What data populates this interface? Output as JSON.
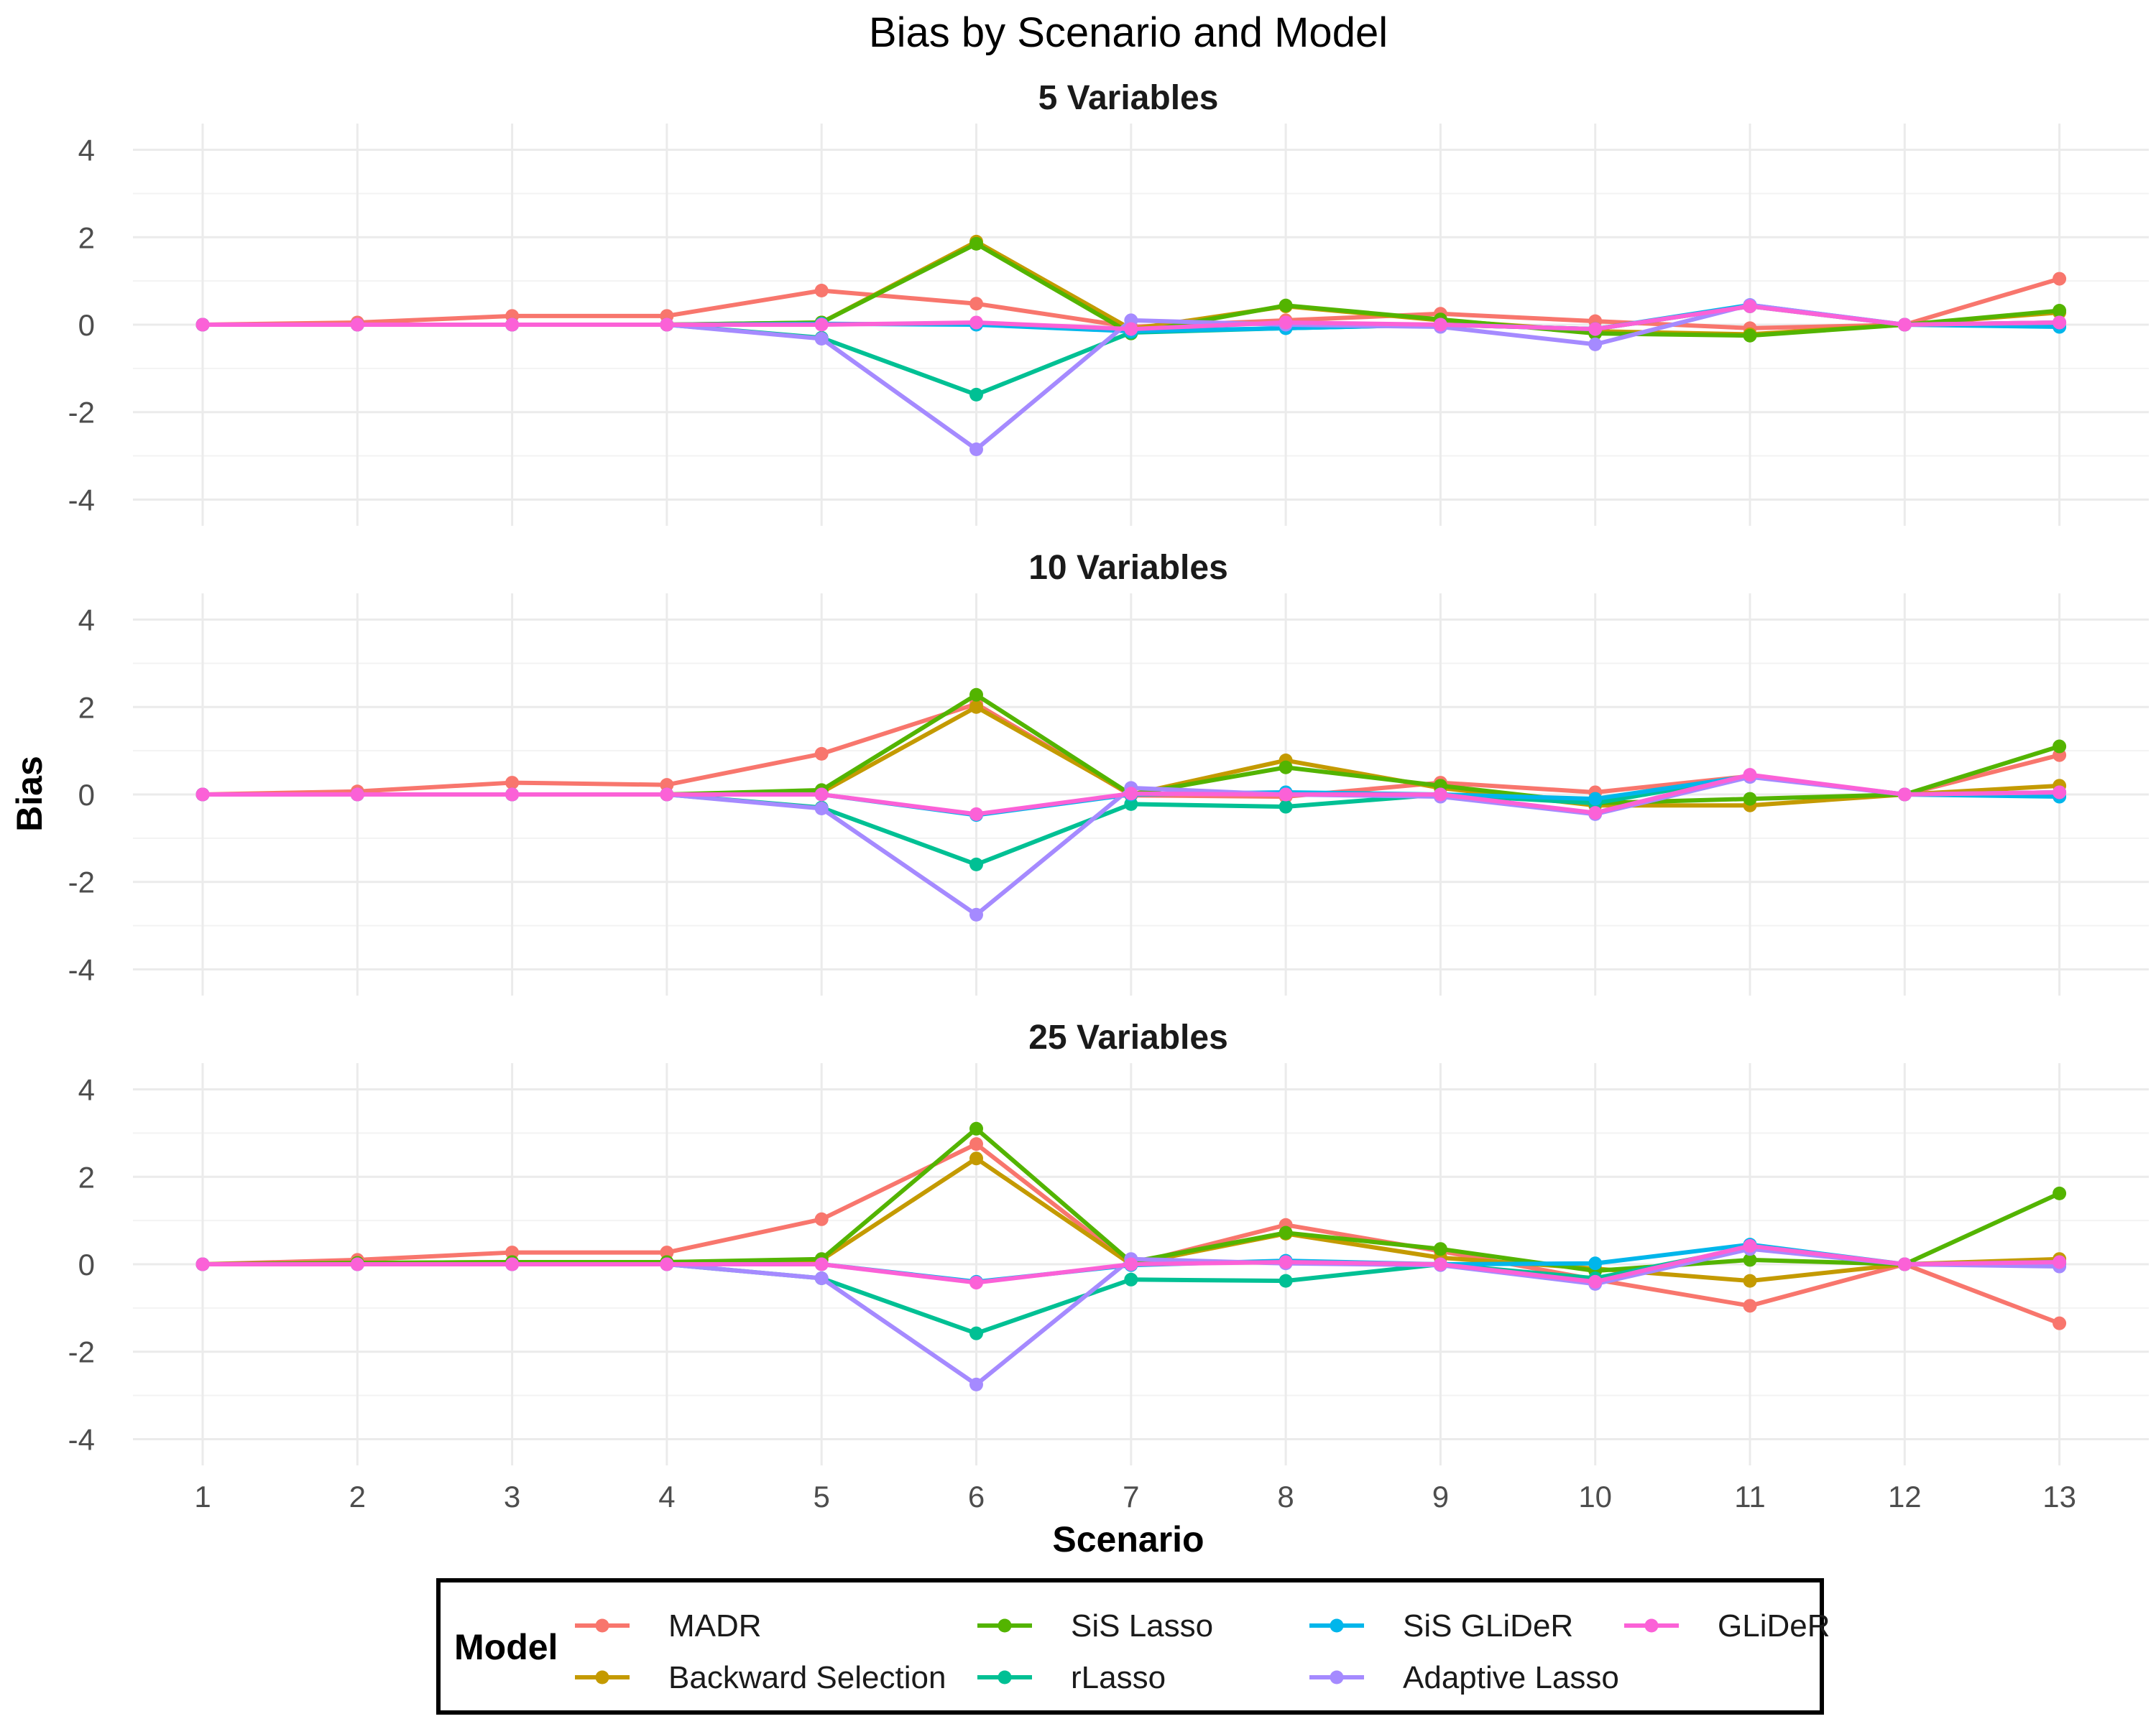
{
  "chart_data": {
    "type": "line",
    "title": "Bias by Scenario and Model",
    "xlabel": "Scenario",
    "ylabel": "Bias",
    "ylim": [
      -4.6,
      4.6
    ],
    "yticks": [
      -4,
      -2,
      0,
      2,
      4
    ],
    "x": [
      1,
      2,
      3,
      4,
      5,
      6,
      7,
      8,
      9,
      10,
      11,
      12,
      13
    ],
    "legend": {
      "title": "Model",
      "position": "bottom"
    },
    "colors": {
      "MADR": "#F8766D",
      "Backward Selection": "#C49A00",
      "SiS Lasso": "#53B400",
      "rLasso": "#00C094",
      "SiS GLiDeR": "#00B6EB",
      "Adaptive Lasso": "#A58AFF",
      "GLiDeR": "#FB61D7"
    },
    "panels": [
      {
        "title": "5 Variables",
        "series": [
          {
            "name": "MADR",
            "values": [
              0,
              0.05,
              0.2,
              0.2,
              0.78,
              0.48,
              -0.05,
              0.1,
              0.25,
              0.08,
              -0.08,
              0,
              1.05
            ]
          },
          {
            "name": "Backward Selection",
            "values": [
              0,
              0,
              0,
              0,
              0.05,
              1.9,
              -0.1,
              0.42,
              0.1,
              -0.15,
              -0.22,
              0,
              0.28
            ]
          },
          {
            "name": "SiS Lasso",
            "values": [
              0,
              0,
              0,
              0,
              0.05,
              1.85,
              -0.2,
              0.44,
              0.12,
              -0.2,
              -0.25,
              0,
              0.32
            ]
          },
          {
            "name": "rLasso",
            "values": [
              0,
              0,
              0,
              0,
              -0.3,
              -1.6,
              -0.18,
              -0.08,
              0,
              -0.1,
              0.42,
              0,
              0.05
            ]
          },
          {
            "name": "SiS GLiDeR",
            "values": [
              0,
              0,
              0,
              0,
              0.02,
              0,
              -0.15,
              -0.08,
              0,
              -0.1,
              0.45,
              0,
              -0.05
            ]
          },
          {
            "name": "Adaptive Lasso",
            "values": [
              0,
              0,
              0,
              0,
              -0.32,
              -2.85,
              0.1,
              0,
              -0.05,
              -0.45,
              0.45,
              0,
              0.05
            ]
          },
          {
            "name": "GLiDeR",
            "values": [
              0,
              0,
              0,
              0,
              0,
              0.05,
              -0.1,
              0.05,
              0,
              -0.1,
              0.42,
              0,
              0.05
            ]
          }
        ]
      },
      {
        "title": "10 Variables",
        "series": [
          {
            "name": "MADR",
            "values": [
              0,
              0.07,
              0.27,
              0.22,
              0.93,
              2.07,
              -0.02,
              -0.05,
              0.27,
              0.05,
              0.42,
              0,
              0.9
            ]
          },
          {
            "name": "Backward Selection",
            "values": [
              0,
              0,
              0,
              0,
              0.05,
              2.0,
              0,
              0.78,
              0.15,
              -0.25,
              -0.25,
              0,
              0.2
            ]
          },
          {
            "name": "SiS Lasso",
            "values": [
              0,
              0,
              0,
              0,
              0.1,
              2.28,
              0,
              0.62,
              0.2,
              -0.2,
              -0.1,
              0,
              1.1
            ]
          },
          {
            "name": "rLasso",
            "values": [
              0,
              0,
              0,
              0,
              -0.3,
              -1.6,
              -0.22,
              -0.28,
              0,
              -0.2,
              0.42,
              0,
              0.05
            ]
          },
          {
            "name": "SiS GLiDeR",
            "values": [
              0,
              0,
              0,
              0,
              0,
              -0.47,
              0,
              0.05,
              0,
              -0.1,
              0.42,
              0,
              -0.05
            ]
          },
          {
            "name": "Adaptive Lasso",
            "values": [
              0,
              0,
              0,
              0,
              -0.32,
              -2.75,
              0.15,
              0,
              -0.05,
              -0.45,
              0.4,
              0,
              0.05
            ]
          },
          {
            "name": "GLiDeR",
            "values": [
              0,
              0,
              0,
              0,
              0,
              -0.45,
              0.02,
              0,
              0,
              -0.42,
              0.45,
              0,
              0.05
            ]
          }
        ]
      },
      {
        "title": "25 Variables",
        "series": [
          {
            "name": "MADR",
            "values": [
              0,
              0.1,
              0.27,
              0.27,
              1.03,
              2.75,
              0,
              0.9,
              0.3,
              -0.35,
              -0.95,
              0,
              -1.35
            ]
          },
          {
            "name": "Backward Selection",
            "values": [
              0,
              0.03,
              0.05,
              0.05,
              0.1,
              2.42,
              0,
              0.7,
              0.15,
              -0.1,
              -0.38,
              0,
              0.12
            ]
          },
          {
            "name": "SiS Lasso",
            "values": [
              0,
              0.03,
              0.05,
              0.05,
              0.12,
              3.1,
              0.05,
              0.72,
              0.35,
              -0.15,
              0.1,
              0,
              1.62
            ]
          },
          {
            "name": "rLasso",
            "values": [
              0,
              0,
              0,
              0,
              -0.32,
              -1.58,
              -0.35,
              -0.38,
              0,
              -0.32,
              0.38,
              0,
              0.05
            ]
          },
          {
            "name": "SiS GLiDeR",
            "values": [
              0,
              0,
              0,
              0,
              0,
              -0.4,
              -0.02,
              0.08,
              0,
              0.02,
              0.45,
              0,
              0.02
            ]
          },
          {
            "name": "Adaptive Lasso",
            "values": [
              0,
              0,
              0,
              0,
              -0.32,
              -2.75,
              0.12,
              0.02,
              -0.02,
              -0.45,
              0.35,
              0,
              -0.05
            ]
          },
          {
            "name": "GLiDeR",
            "values": [
              0,
              0,
              0,
              0,
              0,
              -0.42,
              0,
              0.05,
              0,
              -0.4,
              0.42,
              0,
              0.05
            ]
          }
        ]
      }
    ]
  }
}
